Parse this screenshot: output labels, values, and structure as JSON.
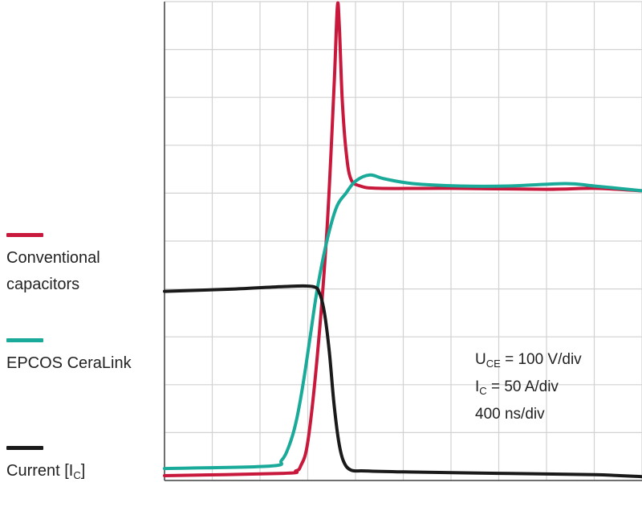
{
  "chart_data": {
    "type": "line",
    "title": "",
    "xlabel": "",
    "ylabel": "",
    "grid": true,
    "x_divisions": 10,
    "y_divisions": 10,
    "xlim": [
      0,
      10
    ],
    "ylim": [
      0,
      10
    ],
    "series": [
      {
        "name": "Conventional capacitors",
        "color": "#c8193c",
        "x": [
          0,
          2.5,
          2.75,
          2.85,
          3.0,
          3.2,
          3.4,
          3.55,
          3.62,
          3.66,
          3.72,
          3.8,
          3.9,
          4.1,
          4.5,
          6,
          8,
          9,
          10
        ],
        "y": [
          0.1,
          0.15,
          0.2,
          0.3,
          0.8,
          2.6,
          5.2,
          8.2,
          9.9,
          9.5,
          8.0,
          6.9,
          6.3,
          6.15,
          6.1,
          6.1,
          6.08,
          6.1,
          6.05
        ]
      },
      {
        "name": "EPCOS CeraLink",
        "color": "#1aaa9a",
        "x": [
          0,
          2.2,
          2.45,
          2.6,
          2.75,
          2.9,
          3.05,
          3.2,
          3.4,
          3.6,
          3.8,
          4.0,
          4.3,
          4.6,
          5.2,
          6.2,
          7.2,
          8.4,
          9.0,
          10
        ],
        "y": [
          0.25,
          0.3,
          0.42,
          0.7,
          1.2,
          2.0,
          3.0,
          4.0,
          5.0,
          5.7,
          6.0,
          6.25,
          6.38,
          6.3,
          6.2,
          6.15,
          6.15,
          6.2,
          6.15,
          6.05
        ]
      },
      {
        "name": "Current [IC]",
        "color": "#1a1a1a",
        "x": [
          0,
          1.5,
          2.5,
          3.1,
          3.25,
          3.35,
          3.45,
          3.55,
          3.65,
          3.75,
          3.9,
          4.2,
          5,
          7,
          9,
          10
        ],
        "y": [
          3.95,
          4.0,
          4.05,
          4.05,
          3.9,
          3.5,
          2.7,
          1.6,
          0.8,
          0.4,
          0.22,
          0.2,
          0.18,
          0.15,
          0.12,
          0.08
        ]
      }
    ]
  },
  "legend": [
    {
      "label": "Conventional capacitors",
      "color": "#c8193c"
    },
    {
      "label": "EPCOS CeraLink",
      "color": "#1aaa9a"
    },
    {
      "label_main": "Current [I",
      "label_sub": "C",
      "label_end": "]",
      "color": "#1a1a1a"
    }
  ],
  "scale_info": {
    "line1_main": "U",
    "line1_sub": "CE",
    "line1_rest": " = 100 V/div",
    "line2_main": "I",
    "line2_sub": "C",
    "line2_rest": " = 50 A/div",
    "line3": "400 ns/div"
  }
}
